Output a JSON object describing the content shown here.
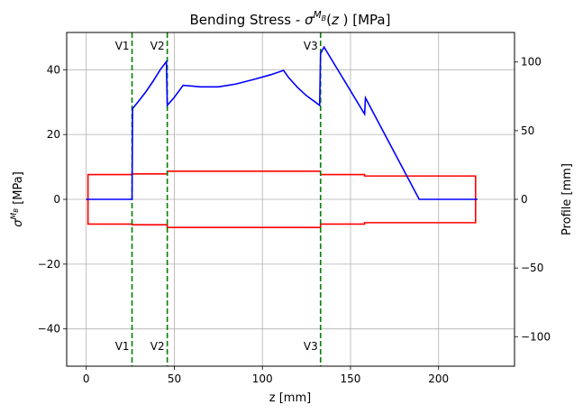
{
  "chart_data": {
    "type": "line",
    "title_prefix": "Bending Stress - ",
    "title_symbol": "σ",
    "title_sup_base": "M",
    "title_sup_sub": "B",
    "title_suffix": "(z) [MPa]",
    "title_var": "z",
    "xlabel": "z [mm]",
    "ylabel_symbol": "σ",
    "ylabel_sup_base": "M",
    "ylabel_sup_sub": "B",
    "ylabel_suffix": " [MPa]",
    "y2label": "Profile [mm]",
    "xlim": [
      -11.1,
      243.1
    ],
    "ylim": [
      -51.5,
      51.5
    ],
    "y2lim": [
      -121.5,
      121.5
    ],
    "xticks": [
      0,
      50,
      100,
      150,
      200
    ],
    "yticks": [
      -40,
      -20,
      0,
      20,
      40
    ],
    "yticklabels": [
      "−40",
      "−20",
      "0",
      "20",
      "40"
    ],
    "y2ticks": [
      -100,
      -50,
      0,
      50,
      100
    ],
    "y2ticklabels": [
      "−100",
      "−50",
      "0",
      "50",
      "100"
    ],
    "grid": true,
    "colors": {
      "stress": "#0000ff",
      "profile": "#ff0000",
      "support": "#008000"
    },
    "series": [
      {
        "axis": "left",
        "color": "#0000ff",
        "x": [
          0,
          26,
          26.3,
          30,
          34,
          38,
          42,
          45.5,
          46,
          50,
          55,
          65,
          75,
          85,
          95,
          105,
          112,
          115,
          120,
          125,
          132.5,
          133,
          135,
          158,
          158.5,
          189,
          222
        ],
        "y": [
          0,
          0,
          28,
          30.5,
          33.3,
          36.5,
          40,
          42.5,
          29,
          31.5,
          35.2,
          34.7,
          34.7,
          35.6,
          37,
          38.5,
          39.8,
          37.5,
          34.5,
          32,
          29,
          45,
          47,
          26.3,
          31.3,
          0,
          0
        ]
      },
      {
        "axis": "right",
        "color": "#ff0000",
        "x": [
          0,
          1,
          1,
          26,
          26,
          46,
          46,
          133,
          133,
          158,
          158,
          221,
          221,
          222
        ],
        "y": [
          0,
          0,
          18,
          18,
          18.5,
          18.5,
          20.5,
          20.5,
          18,
          18,
          17,
          17,
          0,
          0
        ]
      },
      {
        "axis": "right",
        "color": "#ff0000",
        "x": [
          1,
          1,
          26,
          26,
          46,
          46,
          133,
          133,
          158,
          158,
          221,
          221
        ],
        "y": [
          0,
          -18,
          -18,
          -18.5,
          -18.5,
          -20.5,
          -20.5,
          -18,
          -18,
          -17,
          -17,
          0
        ]
      }
    ],
    "supports": [
      {
        "label": "V1",
        "z": 26
      },
      {
        "label": "V2",
        "z": 46
      },
      {
        "label": "V3",
        "z": 133
      }
    ]
  }
}
